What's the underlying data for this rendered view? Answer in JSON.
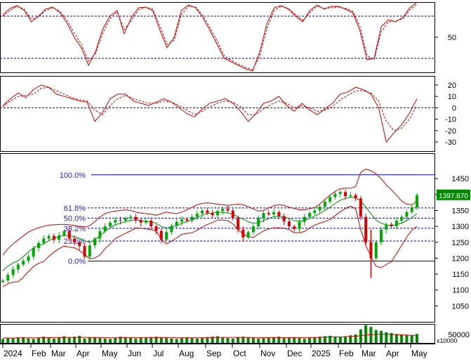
{
  "chart_data": [
    {
      "type": "line",
      "panel": "stochastic-oscillator",
      "y_ticks": [
        50
      ],
      "ylim": [
        0,
        100
      ],
      "reference_lines": [
        80,
        20
      ],
      "series": [
        {
          "values": [
            82,
            91,
            95,
            88,
            72,
            80,
            90,
            93,
            85,
            70,
            50,
            35,
            10,
            30,
            62,
            80,
            88,
            55,
            78,
            92,
            93,
            88,
            60,
            35,
            50,
            88,
            96,
            92,
            78,
            60,
            40,
            20,
            15,
            10,
            5,
            2,
            30,
            70,
            92,
            95,
            90,
            80,
            72,
            88,
            96,
            90,
            94,
            94,
            90,
            85,
            60,
            18,
            20,
            65,
            75,
            72,
            78,
            92,
            100
          ]
        },
        {
          "values": [
            80,
            88,
            94,
            90,
            76,
            79,
            88,
            92,
            87,
            74,
            56,
            40,
            16,
            27,
            56,
            76,
            86,
            61,
            74,
            89,
            93,
            90,
            66,
            40,
            46,
            82,
            94,
            93,
            81,
            64,
            45,
            24,
            17,
            12,
            7,
            4,
            24,
            63,
            88,
            94,
            91,
            82,
            74,
            85,
            94,
            91,
            92,
            93,
            91,
            87,
            66,
            24,
            18,
            58,
            72,
            73,
            76,
            89,
            97
          ]
        }
      ]
    },
    {
      "type": "line",
      "panel": "macd",
      "y_ticks": [
        20,
        10,
        0,
        -10,
        -20,
        -30
      ],
      "ylim": [
        -38,
        28
      ],
      "reference_lines": [
        0
      ],
      "series": [
        {
          "values": [
            2,
            8,
            13,
            9,
            16,
            20,
            18,
            12,
            10,
            8,
            6,
            5,
            -12,
            -4,
            8,
            12,
            12,
            6,
            4,
            2,
            5,
            8,
            5,
            0,
            -5,
            -8,
            -1,
            4,
            6,
            8,
            4,
            -3,
            -12,
            -5,
            4,
            6,
            10,
            2,
            -3,
            4,
            -2,
            -6,
            -1,
            4,
            12,
            14,
            18,
            16,
            12,
            0,
            -30,
            -22,
            -15,
            -5,
            8
          ]
        },
        {
          "values": [
            1,
            6,
            10,
            11,
            12,
            17,
            18,
            15,
            12,
            9,
            7,
            6,
            -2,
            -6,
            2,
            8,
            11,
            8,
            6,
            4,
            4,
            6,
            5,
            2,
            -2,
            -6,
            -3,
            1,
            4,
            6,
            5,
            1,
            -6,
            -6,
            -1,
            3,
            6,
            4,
            0,
            2,
            0,
            -3,
            -2,
            1,
            7,
            11,
            15,
            15,
            13,
            6,
            -12,
            -20,
            -18,
            -10,
            2
          ]
        }
      ]
    },
    {
      "type": "candlestick",
      "panel": "price",
      "y_ticks": [
        1450,
        1400,
        1350,
        1300,
        1250,
        1200,
        1150,
        1100,
        1050
      ],
      "ylim": [
        1000,
        1530
      ],
      "last_price_label": "1397.870",
      "fibonacci": [
        {
          "label": "100.0%",
          "value": 1462
        },
        {
          "label": "61.8%",
          "value": 1358
        },
        {
          "label": "50.0%",
          "value": 1326
        },
        {
          "label": "38.2%",
          "value": 1294
        },
        {
          "label": "23.6%",
          "value": 1254
        },
        {
          "label": "0.0%",
          "value": 1191
        }
      ],
      "close": [
        1130,
        1148,
        1165,
        1180,
        1192,
        1205,
        1232,
        1248,
        1262,
        1270,
        1258,
        1272,
        1285,
        1262,
        1250,
        1238,
        1205,
        1240,
        1262,
        1285,
        1300,
        1312,
        1320,
        1318,
        1325,
        1330,
        1320,
        1312,
        1318,
        1300,
        1286,
        1258,
        1282,
        1302,
        1315,
        1322,
        1318,
        1330,
        1340,
        1350,
        1342,
        1335,
        1348,
        1355,
        1350,
        1326,
        1290,
        1265,
        1282,
        1300,
        1325,
        1342,
        1338,
        1345,
        1332,
        1316,
        1300,
        1292,
        1314,
        1330,
        1342,
        1350,
        1362,
        1378,
        1392,
        1402,
        1408,
        1395,
        1398,
        1388,
        1330,
        1250,
        1200,
        1250,
        1290,
        1306,
        1300,
        1318,
        1330,
        1345,
        1360,
        1398
      ],
      "ma20": [
        1160,
        1175,
        1185,
        1192,
        1205,
        1220,
        1232,
        1240,
        1245,
        1255,
        1262,
        1268,
        1272,
        1270,
        1268,
        1262,
        1255,
        1250,
        1258,
        1270,
        1285,
        1295,
        1305,
        1310,
        1315,
        1318,
        1320,
        1318,
        1316,
        1314,
        1310,
        1300,
        1295,
        1298,
        1302,
        1310,
        1315,
        1320,
        1328,
        1335,
        1340,
        1342,
        1345,
        1344,
        1342,
        1338,
        1330,
        1322,
        1315,
        1310,
        1312,
        1318,
        1325,
        1330,
        1332,
        1330,
        1325,
        1318,
        1316,
        1318,
        1325,
        1332,
        1340,
        1350,
        1360,
        1372,
        1382,
        1388,
        1392,
        1390,
        1380,
        1360,
        1340,
        1320,
        1310,
        1305,
        1302,
        1306,
        1310,
        1318,
        1328,
        1340
      ],
      "bb_upper": [
        1210,
        1230,
        1245,
        1258,
        1270,
        1282,
        1290,
        1296,
        1300,
        1304,
        1305,
        1306,
        1306,
        1305,
        1303,
        1300,
        1298,
        1302,
        1315,
        1330,
        1340,
        1345,
        1348,
        1350,
        1352,
        1350,
        1345,
        1342,
        1340,
        1338,
        1335,
        1340,
        1345,
        1342,
        1340,
        1345,
        1352,
        1360,
        1368,
        1372,
        1374,
        1372,
        1370,
        1368,
        1366,
        1368,
        1370,
        1368,
        1362,
        1355,
        1348,
        1350,
        1358,
        1365,
        1368,
        1366,
        1360,
        1356,
        1352,
        1352,
        1355,
        1360,
        1370,
        1385,
        1398,
        1410,
        1418,
        1420,
        1420,
        1425,
        1470,
        1480,
        1475,
        1465,
        1450,
        1430,
        1415,
        1398,
        1380,
        1370,
        1368,
        1380
      ],
      "bb_lower": [
        1110,
        1120,
        1125,
        1126,
        1140,
        1158,
        1174,
        1184,
        1190,
        1206,
        1219,
        1230,
        1238,
        1235,
        1233,
        1224,
        1212,
        1198,
        1201,
        1210,
        1230,
        1245,
        1262,
        1270,
        1278,
        1286,
        1295,
        1294,
        1292,
        1290,
        1285,
        1260,
        1245,
        1254,
        1264,
        1275,
        1278,
        1280,
        1288,
        1298,
        1306,
        1312,
        1320,
        1320,
        1318,
        1308,
        1290,
        1276,
        1268,
        1265,
        1276,
        1286,
        1292,
        1295,
        1296,
        1294,
        1290,
        1280,
        1280,
        1284,
        1295,
        1304,
        1310,
        1315,
        1322,
        1334,
        1346,
        1356,
        1364,
        1355,
        1290,
        1240,
        1205,
        1175,
        1170,
        1180,
        1189,
        1214,
        1240,
        1266,
        1288,
        1300
      ]
    },
    {
      "type": "bar",
      "panel": "volume",
      "y_ticks": [
        50000
      ],
      "unit_label": "x10000",
      "values": [
        18,
        22,
        20,
        24,
        26,
        20,
        18,
        22,
        28,
        24,
        20,
        26,
        30,
        24,
        28,
        32,
        20,
        24,
        26,
        22,
        20,
        18,
        24,
        28,
        26,
        22,
        20,
        24,
        22,
        26,
        28,
        24,
        22,
        20,
        18,
        24,
        26,
        22,
        20,
        24,
        26,
        28,
        30,
        24,
        22,
        20,
        26,
        28,
        24,
        22,
        20,
        22,
        24,
        26,
        28,
        22,
        24,
        26,
        22,
        20,
        24,
        26,
        28,
        30,
        32,
        28,
        26,
        30,
        34,
        38,
        60,
        80,
        72,
        58,
        54,
        48,
        44,
        40,
        38,
        36,
        34,
        40
      ],
      "ma": [
        22,
        22,
        22,
        23,
        23,
        23,
        23,
        23,
        24,
        24,
        24,
        24,
        25,
        25,
        25,
        25,
        25,
        25,
        24,
        24,
        24,
        23,
        23,
        23,
        24,
        24,
        24,
        24,
        24,
        24,
        24,
        24,
        24,
        24,
        23,
        23,
        23,
        23,
        23,
        23,
        24,
        24,
        25,
        25,
        25,
        25,
        25,
        25,
        25,
        24,
        24,
        24,
        24,
        24,
        24,
        24,
        24,
        24,
        24,
        24,
        24,
        24,
        25,
        26,
        27,
        27,
        27,
        28,
        29,
        30,
        32,
        35,
        37,
        38,
        39,
        39,
        38,
        37,
        36,
        35,
        34,
        34
      ]
    },
    {
      "type": "axis",
      "panel": "time-axis",
      "x_ticks": [
        "2024",
        "Feb",
        "Mar",
        "Apr",
        "May",
        "Jun",
        "Jul",
        "Aug",
        "Sep",
        "Oct",
        "Nov",
        "Dec",
        "2025",
        "Feb",
        "Mar",
        "Apr",
        "May"
      ]
    }
  ],
  "colors": {
    "line_red": "#cc0000",
    "line_green": "#008800",
    "grid_blue": "#0000aa",
    "fib_label": "#2222cc",
    "up_candle": "#00aa00",
    "down_candle": "#dd0000",
    "price_label_bg": "#008800",
    "price_label_text": "#ffffff",
    "volume_bar": "#008800"
  }
}
